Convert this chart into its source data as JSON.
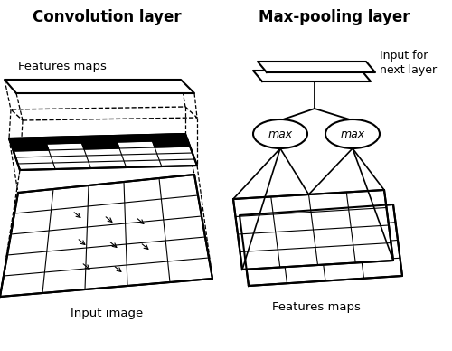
{
  "title_left": "Convolution layer",
  "title_right": "Max-pooling layer",
  "label_features_maps_left": "Features maps",
  "label_input_image": "Input image",
  "label_features_maps_right": "Features maps",
  "label_input_next": "Input for\nnext layer",
  "label_max": "max",
  "bg_color": "#ffffff",
  "line_color": "#000000",
  "title_fontsize": 12,
  "label_fontsize": 9.5
}
